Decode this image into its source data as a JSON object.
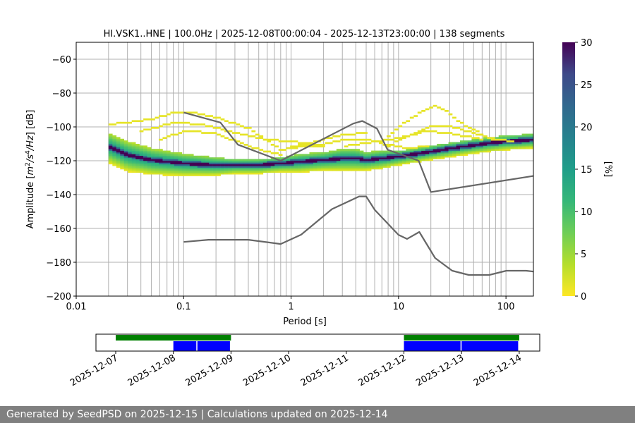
{
  "chart_data": {
    "type": "heatmap",
    "title": "HI.VSK1..HNE | 100.0Hz | 2025-12-08T00:00:04 - 2025-12-13T23:00:00 | 138 segments",
    "xlabel": "Period [s]",
    "ylabel": "Amplitude [m²/s⁴/Hz] [dB]",
    "xscale": "log",
    "xlim": [
      0.01,
      180
    ],
    "ylim": [
      -200,
      -50
    ],
    "xticks": [
      0.01,
      0.1,
      1,
      10,
      100
    ],
    "xtick_labels": [
      "0.01",
      "0.1",
      "1",
      "10",
      "100"
    ],
    "yticks": [
      -200,
      -180,
      -160,
      -140,
      -120,
      -100,
      -80,
      -60
    ],
    "ytick_labels": [
      "−200",
      "−180",
      "−160",
      "−140",
      "−120",
      "−100",
      "−80",
      "−60"
    ],
    "grid": true,
    "colorbar": {
      "label": "[%]",
      "range": [
        0,
        30
      ],
      "ticks": [
        0,
        5,
        10,
        15,
        20,
        25,
        30
      ],
      "tick_labels": [
        "0",
        "5",
        "10",
        "15",
        "20",
        "25",
        "30"
      ],
      "colormap": "viridis_r"
    },
    "noise_models": [
      {
        "name": "NHNM",
        "color": "#666666",
        "x": [
          0.1,
          0.22,
          0.32,
          0.8,
          3.8,
          4.6,
          6.3,
          7.9,
          15.4,
          20,
          180
        ],
        "y": [
          -91.5,
          -97.4,
          -110.5,
          -120,
          -98,
          -96.5,
          -101,
          -113.5,
          -120,
          -138.5,
          -129
        ]
      },
      {
        "name": "NLNM",
        "color": "#666666",
        "x": [
          0.1,
          0.17,
          0.4,
          0.8,
          1.24,
          2.4,
          4.3,
          5,
          6,
          10,
          12,
          15.6,
          21.9,
          31.6,
          45,
          70,
          101,
          154,
          180
        ],
        "y": [
          -168,
          -166.7,
          -166.7,
          -169.2,
          -163.7,
          -148.6,
          -141.1,
          -141.1,
          -149,
          -163.8,
          -166.2,
          -162.1,
          -177.5,
          -185,
          -187.5,
          -187.5,
          -185,
          -185,
          -185.5
        ]
      }
    ],
    "mode_curve": {
      "x": [
        0.02,
        0.03,
        0.05,
        0.1,
        0.2,
        0.3,
        0.5,
        0.8,
        1.2,
        2,
        3,
        4,
        5,
        7,
        10,
        20,
        40,
        70,
        100,
        180
      ],
      "y": [
        -112,
        -117,
        -120,
        -122,
        -123,
        -123,
        -123,
        -122,
        -121,
        -120,
        -119,
        -119,
        -120,
        -119,
        -118,
        -115,
        -112,
        -110,
        -109,
        -108
      ],
      "spread": [
        6,
        6,
        5,
        4,
        3,
        2,
        2,
        2,
        3,
        3,
        4,
        4,
        3,
        3,
        2,
        2,
        2,
        2,
        2,
        2
      ]
    },
    "outlier_curves": [
      {
        "x": [
          0.02,
          0.05,
          0.08,
          0.12,
          0.2,
          0.4,
          0.8,
          1.5,
          3,
          5
        ],
        "y": [
          -99,
          -96,
          -92,
          -92,
          -95,
          -101,
          -114,
          -110,
          -105,
          -104
        ]
      },
      {
        "x": [
          0.04,
          0.08,
          0.15,
          0.3,
          0.6,
          1,
          2
        ],
        "y": [
          -103,
          -98,
          -99,
          -104,
          -108,
          -109,
          -112
        ]
      },
      {
        "x": [
          0.06,
          0.1,
          0.2,
          0.4,
          0.8
        ],
        "y": [
          -108,
          -103,
          -104,
          -112,
          -117
        ]
      },
      {
        "x": [
          8,
          12,
          18,
          22,
          28,
          40,
          60,
          80
        ],
        "y": [
          -106,
          -97,
          -90,
          -88,
          -91,
          -99,
          -105,
          -108
        ]
      },
      {
        "x": [
          8,
          12,
          20,
          30,
          50,
          80,
          120
        ],
        "y": [
          -112,
          -106,
          -100,
          -100,
          -104,
          -108,
          -109
        ]
      },
      {
        "x": [
          3,
          5,
          8,
          12,
          18,
          30,
          60
        ],
        "y": [
          -112,
          -110,
          -108,
          -106,
          -103,
          -104,
          -108
        ]
      },
      {
        "x": [
          1,
          2,
          3,
          5,
          8,
          12,
          20
        ],
        "y": [
          -113,
          -111,
          -108,
          -108,
          -111,
          -113,
          -112
        ]
      }
    ],
    "availability": {
      "dates": [
        "2025-12-07",
        "2025-12-08",
        "2025-12-09",
        "2025-12-10",
        "2025-12-11",
        "2025-12-12",
        "2025-12-13",
        "2025-12-14"
      ],
      "data_available": [
        {
          "start": "2025-12-07",
          "end": "2025-12-09"
        },
        {
          "start": "2025-12-12",
          "end": "2025-12-14"
        }
      ],
      "psd_segments": [
        {
          "start": "2025-12-08",
          "end": "2025-12-08T10:00"
        },
        {
          "start": "2025-12-08T10:00",
          "end": "2025-12-09"
        },
        {
          "start": "2025-12-12",
          "end": "2025-12-13"
        },
        {
          "start": "2025-12-13",
          "end": "2025-12-14"
        }
      ],
      "colors": {
        "available": "#008000",
        "psd": "#0000ff"
      }
    }
  },
  "footer": {
    "text": "Generated by SeedPSD on 2025-12-15 | Calculations updated on 2025-12-14"
  }
}
